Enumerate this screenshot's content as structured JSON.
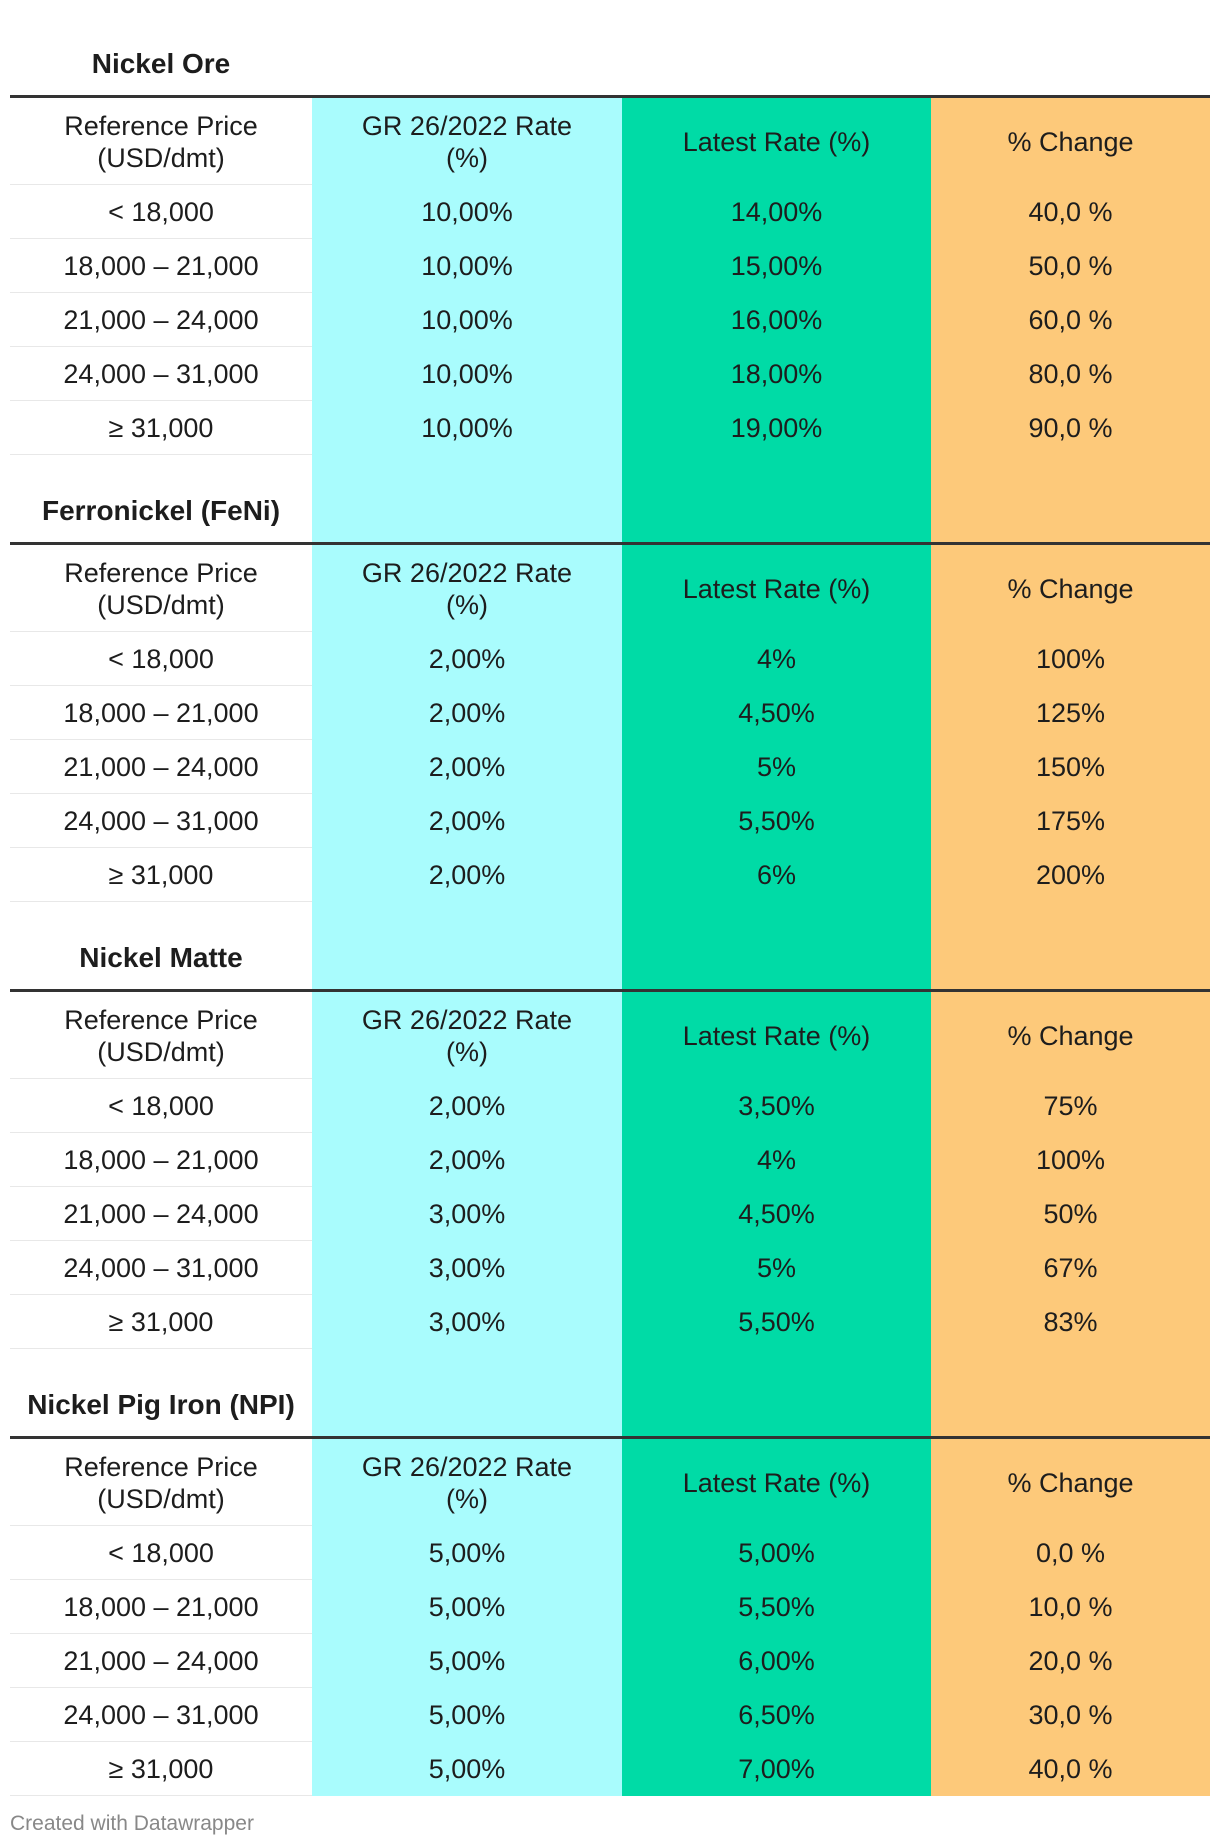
{
  "chart_data": {
    "type": "table",
    "columns": [
      "Reference Price (USD/dmt)",
      "GR 26/2022 Rate (%)",
      "Latest Rate (%)",
      "% Change"
    ],
    "colors": {
      "gr_rate": "#a9fcfd",
      "latest_rate": "#00dba6",
      "change": "#fdc97a",
      "rule": "#333333"
    },
    "sections": [
      {
        "title": "Nickel Ore",
        "headers": [
          "Reference Price\n(USD/dmt)",
          "GR 26/2022 Rate\n(%)",
          "Latest Rate (%)",
          "% Change"
        ],
        "rows": [
          [
            "< 18,000",
            "10,00%",
            "14,00%",
            "40,0 %"
          ],
          [
            "18,000 – 21,000",
            "10,00%",
            "15,00%",
            "50,0 %"
          ],
          [
            "21,000 – 24,000",
            "10,00%",
            "16,00%",
            "60,0 %"
          ],
          [
            "24,000 – 31,000",
            "10,00%",
            "18,00%",
            "80,0 %"
          ],
          [
            "≥ 31,000",
            "10,00%",
            "19,00%",
            "90,0 %"
          ]
        ]
      },
      {
        "title": "Ferronickel (FeNi)",
        "headers": [
          "Reference Price\n(USD/dmt)",
          "GR 26/2022 Rate\n(%)",
          "Latest Rate (%)",
          "% Change"
        ],
        "rows": [
          [
            "< 18,000",
            "2,00%",
            "4%",
            "100%"
          ],
          [
            "18,000 – 21,000",
            "2,00%",
            "4,50%",
            "125%"
          ],
          [
            "21,000 – 24,000",
            "2,00%",
            "5%",
            "150%"
          ],
          [
            "24,000 – 31,000",
            "2,00%",
            "5,50%",
            "175%"
          ],
          [
            "≥ 31,000",
            "2,00%",
            "6%",
            "200%"
          ]
        ]
      },
      {
        "title": "Nickel Matte",
        "headers": [
          "Reference Price\n(USD/dmt)",
          "GR 26/2022 Rate\n(%)",
          "Latest Rate (%)",
          "% Change"
        ],
        "rows": [
          [
            "< 18,000",
            "2,00%",
            "3,50%",
            "75%"
          ],
          [
            "18,000 – 21,000",
            "2,00%",
            "4%",
            "100%"
          ],
          [
            "21,000 – 24,000",
            "3,00%",
            "4,50%",
            "50%"
          ],
          [
            "24,000 – 31,000",
            "3,00%",
            "5%",
            "67%"
          ],
          [
            "≥ 31,000",
            "3,00%",
            "5,50%",
            "83%"
          ]
        ]
      },
      {
        "title": "Nickel Pig Iron (NPI)",
        "headers": [
          "Reference Price\n(USD/dmt)",
          "GR 26/2022 Rate\n(%)",
          "Latest Rate (%)",
          "% Change"
        ],
        "rows": [
          [
            "< 18,000",
            "5,00%",
            "5,00%",
            "0,0 %"
          ],
          [
            "18,000 – 21,000",
            "5,00%",
            "5,50%",
            "10,0 %"
          ],
          [
            "21,000 – 24,000",
            "5,00%",
            "6,00%",
            "20,0 %"
          ],
          [
            "24,000 – 31,000",
            "5,00%",
            "6,50%",
            "30,0 %"
          ],
          [
            "≥ 31,000",
            "5,00%",
            "7,00%",
            "40,0 %"
          ]
        ]
      }
    ]
  },
  "footer": "Created with Datawrapper"
}
